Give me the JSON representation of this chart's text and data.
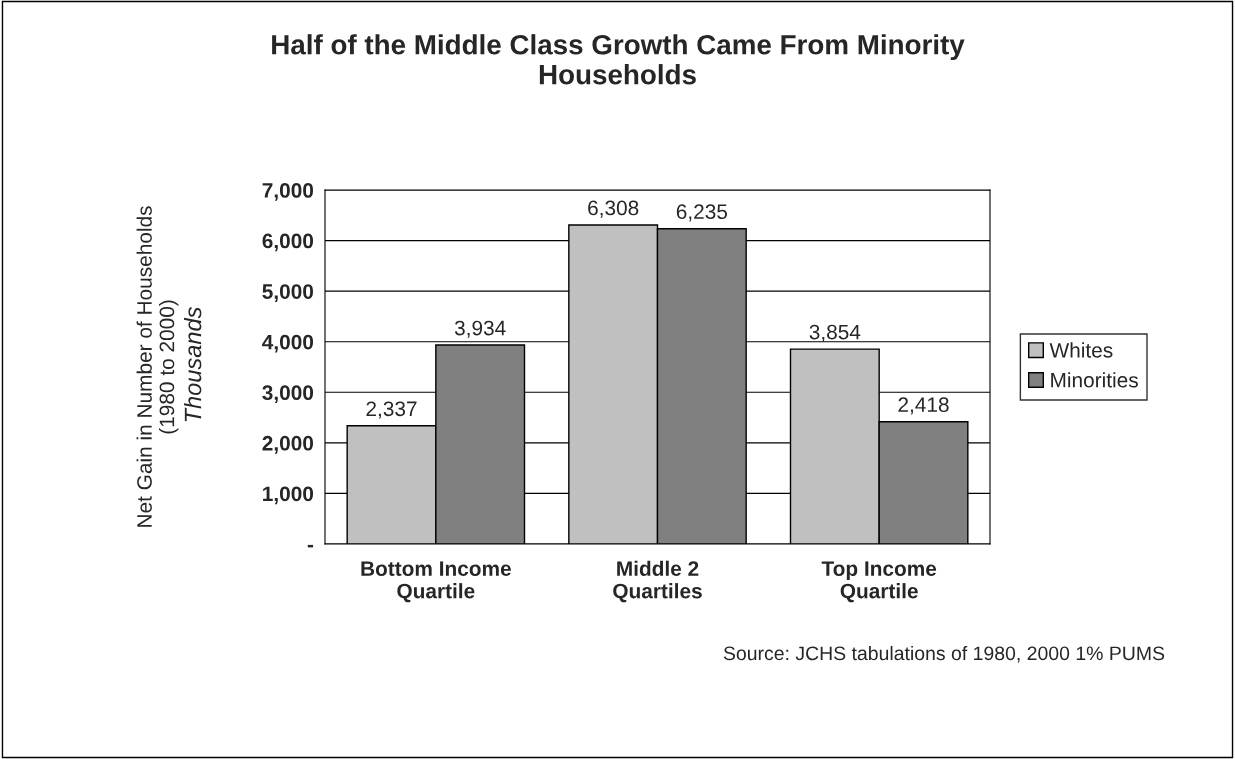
{
  "chart_data": {
    "type": "bar",
    "title": "Half of the Middle Class Growth Came From Minority\nHouseholds",
    "categories": [
      "Bottom Income\nQuartile",
      "Middle 2\nQuartiles",
      "Top Income\nQuartile"
    ],
    "series": [
      {
        "name": "Whites",
        "color": "#c0c0c0",
        "values": [
          2337,
          6308,
          3854
        ],
        "value_labels": [
          "2,337",
          "6,308",
          "3,854"
        ]
      },
      {
        "name": "Minorities",
        "color": "#808080",
        "values": [
          3934,
          6235,
          2418
        ],
        "value_labels": [
          "3,934",
          "6,235",
          "2,418"
        ]
      }
    ],
    "ylabel": "Net Gain in Number of Households\n(1980 to 2000)",
    "ylim": [
      0,
      7000
    ],
    "yticks": [
      {
        "value": 0,
        "label": "-"
      },
      {
        "value": 1000,
        "label": "1,000"
      },
      {
        "value": 2000,
        "label": "2,000"
      },
      {
        "value": 3000,
        "label": "3,000"
      },
      {
        "value": 4000,
        "label": "4,000"
      },
      {
        "value": 5000,
        "label": "5,000"
      },
      {
        "value": 6000,
        "label": "6,000"
      },
      {
        "value": 7000,
        "label": "7,000"
      }
    ],
    "grid": "y",
    "legend": "right",
    "annotations": [
      "Thousands",
      "Source: JCHS tabulations of 1980, 2000 1% PUMS"
    ]
  }
}
